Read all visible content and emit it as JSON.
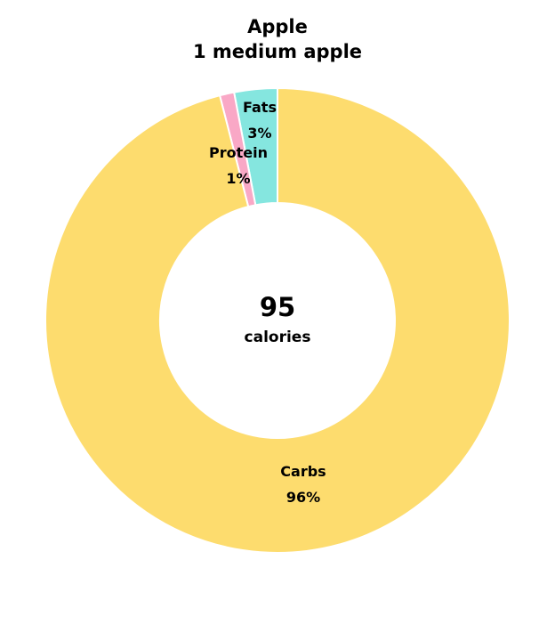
{
  "chart_data": {
    "type": "pie",
    "donut": true,
    "title": "Apple",
    "subtitle": "1 medium apple",
    "center": {
      "value": "95",
      "unit": "calories"
    },
    "categories": [
      "Fats",
      "Protein",
      "Carbs"
    ],
    "values": [
      3,
      1,
      96
    ],
    "value_labels": [
      "3%",
      "1%",
      "96%"
    ],
    "colors": [
      "#85e6df",
      "#f9a8c6",
      "#fddc6e"
    ],
    "legend": "none",
    "grid": false
  }
}
